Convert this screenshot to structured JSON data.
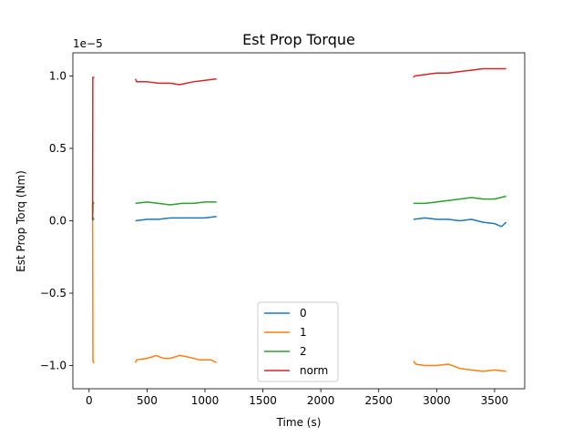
{
  "chart_data": {
    "type": "line",
    "title": "Est Prop Torque",
    "xlabel": "Time (s)",
    "ylabel": "Est Prop Torq (Nm)",
    "y_offset_text": "1e−5",
    "y_multiplier": 1e-05,
    "xlim": [
      -140,
      3760
    ],
    "ylim": [
      -1.16,
      1.16
    ],
    "xticks": [
      0,
      500,
      1000,
      1500,
      2000,
      2500,
      3000,
      3500
    ],
    "xtick_labels": [
      "0",
      "500",
      "1000",
      "1500",
      "2000",
      "2500",
      "3000",
      "3500"
    ],
    "yticks": [
      -1.0,
      -0.5,
      0.0,
      0.5,
      1.0
    ],
    "ytick_labels": [
      "−1.0",
      "−0.5",
      "0.0",
      "0.5",
      "1.0"
    ],
    "grid": false,
    "legend_position": "lower-center",
    "series": [
      {
        "name": "0",
        "color": "#1f77b4",
        "segments": [
          [
            [
              30,
              0.0
            ],
            [
              34,
              0.02
            ],
            [
              40,
              0.01
            ],
            [
              45,
              0.01
            ]
          ],
          [
            [
              400,
              0.0
            ],
            [
              500,
              0.01
            ],
            [
              600,
              0.01
            ],
            [
              700,
              0.02
            ],
            [
              800,
              0.02
            ],
            [
              900,
              0.02
            ],
            [
              1000,
              0.02
            ],
            [
              1100,
              0.03
            ]
          ],
          [
            [
              2800,
              0.01
            ],
            [
              2900,
              0.02
            ],
            [
              3000,
              0.01
            ],
            [
              3100,
              0.01
            ],
            [
              3200,
              0.0
            ],
            [
              3300,
              0.01
            ],
            [
              3400,
              -0.01
            ],
            [
              3500,
              -0.02
            ],
            [
              3560,
              -0.04
            ],
            [
              3600,
              -0.01
            ]
          ]
        ]
      },
      {
        "name": "1",
        "color": "#ff7f0e",
        "segments": [
          [
            [
              30,
              0.12
            ],
            [
              33,
              -0.97
            ],
            [
              40,
              -0.98
            ],
            [
              45,
              -0.98
            ]
          ],
          [
            [
              400,
              -0.98
            ],
            [
              410,
              -0.96
            ],
            [
              500,
              -0.95
            ],
            [
              580,
              -0.93
            ],
            [
              640,
              -0.95
            ],
            [
              700,
              -0.95
            ],
            [
              780,
              -0.93
            ],
            [
              850,
              -0.94
            ],
            [
              950,
              -0.96
            ],
            [
              1050,
              -0.96
            ],
            [
              1100,
              -0.98
            ]
          ],
          [
            [
              2800,
              -0.97
            ],
            [
              2820,
              -0.99
            ],
            [
              2900,
              -1.0
            ],
            [
              3000,
              -1.0
            ],
            [
              3100,
              -0.99
            ],
            [
              3200,
              -1.02
            ],
            [
              3300,
              -1.03
            ],
            [
              3400,
              -1.04
            ],
            [
              3500,
              -1.03
            ],
            [
              3600,
              -1.04
            ]
          ]
        ]
      },
      {
        "name": "2",
        "color": "#2ca02c",
        "segments": [
          [
            [
              30,
              0.0
            ],
            [
              34,
              0.13
            ],
            [
              40,
              0.12
            ],
            [
              45,
              0.12
            ]
          ],
          [
            [
              400,
              0.12
            ],
            [
              500,
              0.13
            ],
            [
              600,
              0.12
            ],
            [
              700,
              0.11
            ],
            [
              800,
              0.12
            ],
            [
              900,
              0.12
            ],
            [
              1000,
              0.13
            ],
            [
              1100,
              0.13
            ]
          ],
          [
            [
              2800,
              0.12
            ],
            [
              2900,
              0.12
            ],
            [
              3000,
              0.13
            ],
            [
              3100,
              0.14
            ],
            [
              3200,
              0.15
            ],
            [
              3300,
              0.16
            ],
            [
              3400,
              0.15
            ],
            [
              3500,
              0.15
            ],
            [
              3600,
              0.17
            ]
          ]
        ]
      },
      {
        "name": "norm",
        "color": "#d62728",
        "segments": [
          [
            [
              30,
              0.01
            ],
            [
              32,
              0.99
            ],
            [
              40,
              0.99
            ],
            [
              45,
              0.99
            ]
          ],
          [
            [
              400,
              0.98
            ],
            [
              410,
              0.96
            ],
            [
              500,
              0.96
            ],
            [
              600,
              0.95
            ],
            [
              700,
              0.95
            ],
            [
              780,
              0.94
            ],
            [
              900,
              0.96
            ],
            [
              1000,
              0.97
            ],
            [
              1100,
              0.98
            ]
          ],
          [
            [
              2800,
              0.99
            ],
            [
              2810,
              1.0
            ],
            [
              2900,
              1.01
            ],
            [
              3000,
              1.02
            ],
            [
              3100,
              1.02
            ],
            [
              3200,
              1.03
            ],
            [
              3300,
              1.04
            ],
            [
              3400,
              1.05
            ],
            [
              3500,
              1.05
            ],
            [
              3600,
              1.05
            ]
          ]
        ]
      }
    ]
  }
}
